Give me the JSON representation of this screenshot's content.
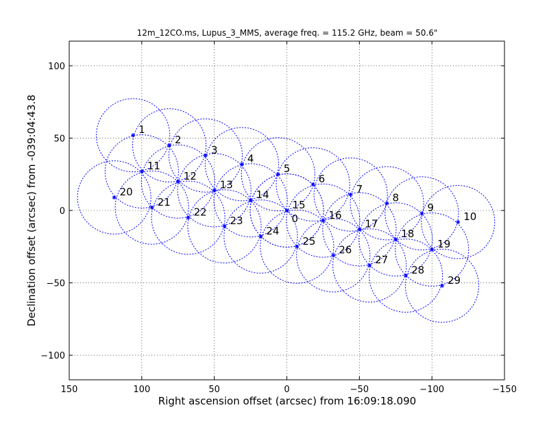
{
  "chart_data": {
    "type": "scatter",
    "title": "12m_12CO.ms, Lupus_3_MMS, average freq. = 115.2 GHz, beam = 50.6\"",
    "xlabel": "Right ascension offset (arcsec) from 16:09:18.090",
    "ylabel": "Declination offset (arcsec) from -039:04:43.8",
    "xlim": [
      150,
      -150
    ],
    "ylim": [
      -117,
      117
    ],
    "xticks": [
      150,
      100,
      50,
      0,
      -50,
      -100,
      -150
    ],
    "xtick_labels": [
      "150",
      "100",
      "50",
      "0",
      "−50",
      "−100",
      "−150"
    ],
    "yticks": [
      -100,
      -50,
      0,
      50,
      100
    ],
    "ytick_labels": [
      "−100",
      "−50",
      "0",
      "50",
      "100"
    ],
    "grid": true,
    "beam_radius": 25.3,
    "marker_color": "#0000ff",
    "circle_color": "#0000ff",
    "pointings": [
      {
        "id": "0",
        "x": 0,
        "y": 0
      },
      {
        "id": "1",
        "x": 106,
        "y": 52
      },
      {
        "id": "2",
        "x": 81,
        "y": 45
      },
      {
        "id": "3",
        "x": 56,
        "y": 38
      },
      {
        "id": "4",
        "x": 31,
        "y": 32
      },
      {
        "id": "5",
        "x": 6,
        "y": 25
      },
      {
        "id": "6",
        "x": -18,
        "y": 18
      },
      {
        "id": "7",
        "x": -44,
        "y": 11
      },
      {
        "id": "8",
        "x": -69,
        "y": 5
      },
      {
        "id": "9",
        "x": -93,
        "y": -2
      },
      {
        "id": "10",
        "x": -118,
        "y": -8
      },
      {
        "id": "11",
        "x": 100,
        "y": 27
      },
      {
        "id": "12",
        "x": 75,
        "y": 20
      },
      {
        "id": "13",
        "x": 50,
        "y": 14
      },
      {
        "id": "14",
        "x": 25,
        "y": 7
      },
      {
        "id": "15",
        "x": 0,
        "y": 0
      },
      {
        "id": "16",
        "x": -25,
        "y": -7
      },
      {
        "id": "17",
        "x": -50,
        "y": -13
      },
      {
        "id": "18",
        "x": -75,
        "y": -20
      },
      {
        "id": "19",
        "x": -100,
        "y": -27
      },
      {
        "id": "20",
        "x": 119,
        "y": 9
      },
      {
        "id": "21",
        "x": 93,
        "y": 2
      },
      {
        "id": "22",
        "x": 68,
        "y": -5
      },
      {
        "id": "23",
        "x": 43,
        "y": -11
      },
      {
        "id": "24",
        "x": 18,
        "y": -18
      },
      {
        "id": "25",
        "x": -7,
        "y": -25
      },
      {
        "id": "26",
        "x": -32,
        "y": -31
      },
      {
        "id": "27",
        "x": -57,
        "y": -38
      },
      {
        "id": "28",
        "x": -82,
        "y": -45
      },
      {
        "id": "29",
        "x": -107,
        "y": -52
      }
    ]
  }
}
